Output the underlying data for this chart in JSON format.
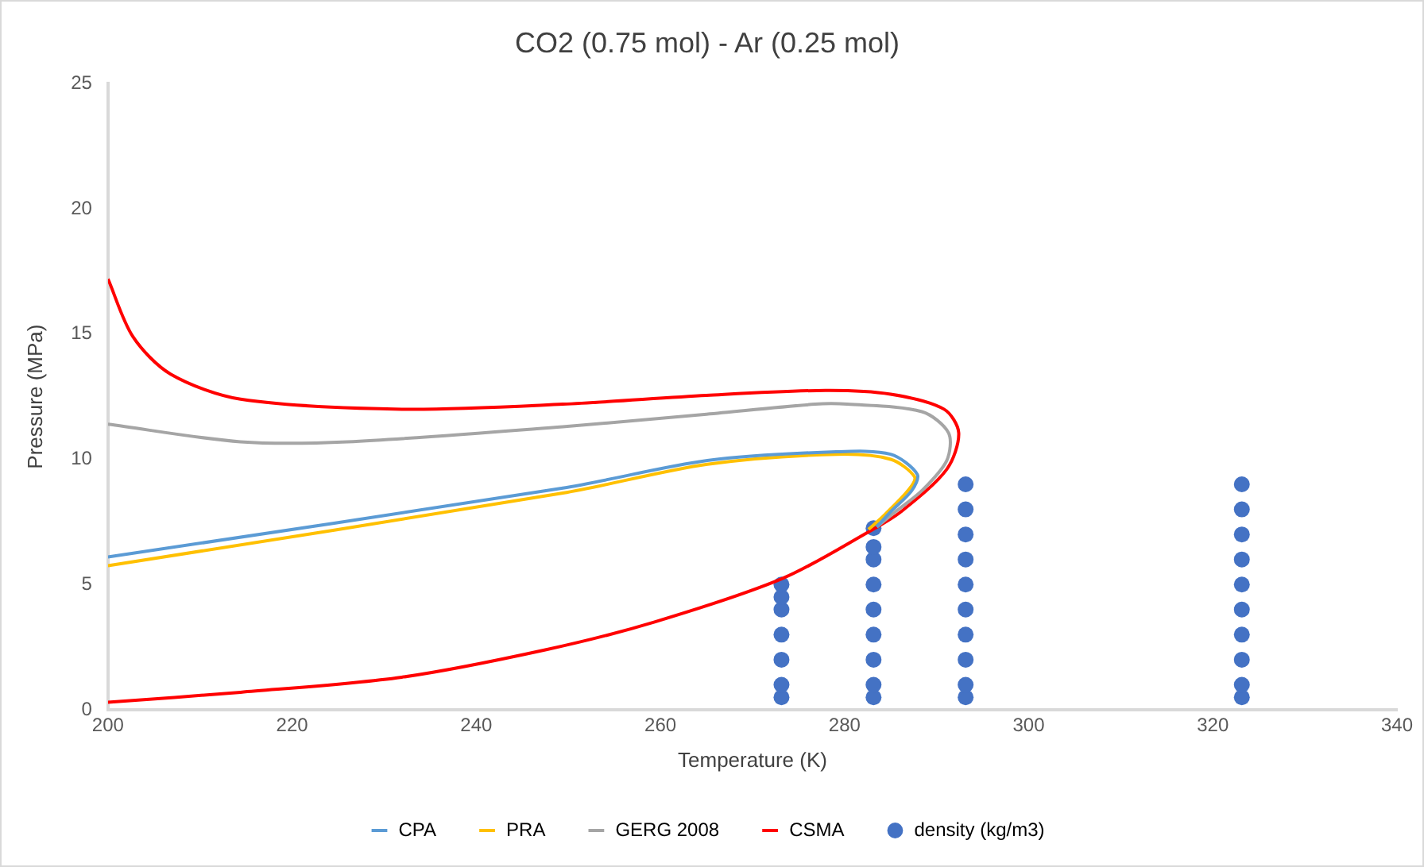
{
  "chart_data": {
    "type": "line",
    "title": "CO2 (0.75 mol) - Ar (0.25 mol)",
    "xlabel": "Temperature (K)",
    "ylabel": "Pressure (MPa)",
    "xlim": [
      200,
      340
    ],
    "xticks": [
      200,
      220,
      240,
      260,
      280,
      300,
      320,
      340
    ],
    "ylim": [
      0,
      25
    ],
    "yticks": [
      0,
      5,
      10,
      15,
      20,
      25
    ],
    "grid": false,
    "legend": "bottom",
    "series": [
      {
        "name": "CPA",
        "type": "line",
        "marker": "none",
        "color": "#5b9bd5",
        "x": [
          200,
          249.4,
          265.1,
          279.1,
          285,
          287.9,
          287.3,
          285,
          283.5
        ],
        "values": [
          6.1,
          8.85,
          9.95,
          10.3,
          10.2,
          9.4,
          8.75,
          7.9,
          7.3
        ]
      },
      {
        "name": "PRA",
        "type": "line",
        "marker": "none",
        "color": "#ffc000",
        "x": [
          200,
          249.4,
          265.1,
          279.1,
          285,
          287.6,
          287,
          284.4,
          282.6
        ],
        "values": [
          5.75,
          8.65,
          9.8,
          10.2,
          10,
          9.3,
          8.8,
          7.8,
          7.2
        ]
      },
      {
        "name": "GERG 2008",
        "type": "line",
        "marker": "none",
        "color": "#a5a5a5",
        "x": [
          200,
          214.4,
          226,
          249.4,
          265,
          276.8,
          280.3,
          288.4,
          291.3,
          291.1,
          288.4,
          285.5,
          283.5
        ],
        "values": [
          11.4,
          10.7,
          10.7,
          11.3,
          11.8,
          12.2,
          12.2,
          11.9,
          11.05,
          9.95,
          8.75,
          7.9,
          7.3
        ]
      },
      {
        "name": "CSMA",
        "type": "line",
        "marker": "none",
        "color": "#ff0000",
        "x": [
          200,
          202.7,
          206.8,
          214.4,
          231.9,
          249.4,
          265,
          277.9,
          285,
          290.8,
          292.4,
          291.1,
          286.1,
          282.6,
          273.3,
          259.3,
          247.6,
          231.9,
          214.4,
          200
        ],
        "values": [
          17.2,
          14.9,
          13.4,
          12.4,
          12,
          12.2,
          12.55,
          12.75,
          12.6,
          12,
          11.05,
          9.6,
          7.9,
          7.1,
          5.25,
          3.5,
          2.4,
          1.3,
          0.7,
          0.3
        ]
      },
      {
        "name": "density (kg/m3)",
        "type": "scatter",
        "marker": "circle",
        "color": "#4472c4",
        "x": [
          273.15,
          273.15,
          273.15,
          273.15,
          273.15,
          273.15,
          273.15,
          283.15,
          283.15,
          283.15,
          283.15,
          283.15,
          283.15,
          283.15,
          283.15,
          283.15,
          293.15,
          293.15,
          293.15,
          293.15,
          293.15,
          293.15,
          293.15,
          293.15,
          293.15,
          293.15,
          323.15,
          323.15,
          323.15,
          323.15,
          323.15,
          323.15,
          323.15,
          323.15,
          323.15,
          323.15
        ],
        "values": [
          0.5,
          1,
          2,
          3,
          4,
          4.5,
          5,
          0.5,
          1,
          2,
          3,
          4,
          5,
          6,
          6.5,
          7.25,
          0.5,
          1,
          2,
          3,
          4,
          5,
          6,
          7,
          8,
          9,
          0.5,
          1,
          2,
          3,
          4,
          5,
          6,
          7,
          8,
          9
        ]
      }
    ]
  }
}
